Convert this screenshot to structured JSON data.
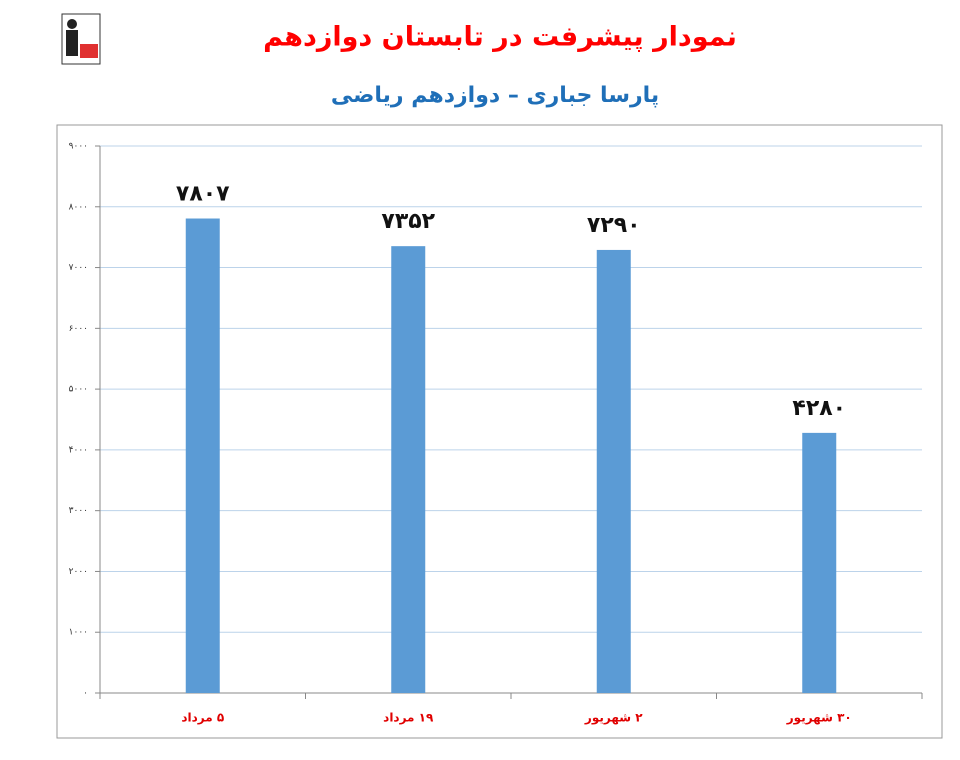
{
  "chart_data": {
    "type": "bar",
    "title": "نمودار پیشرفت در تابستان دوازدهم",
    "subtitle": "پارسا جباری – دوازدهم ریاضی",
    "categories": [
      "۵ مرداد",
      "۱۹ مرداد",
      "۲ شهریور",
      "۳۰ شهریور"
    ],
    "values": [
      7807,
      7352,
      7290,
      4280
    ],
    "value_labels": [
      "۷۸۰۷",
      "۷۳۵۲",
      "۷۲۹۰",
      "۴۲۸۰"
    ],
    "color": "#5b9bd5",
    "ylim": [
      0,
      9000
    ],
    "yticks": [
      {
        "value": 0,
        "label": "۰"
      },
      {
        "value": 1000,
        "label": "۱۰۰۰"
      },
      {
        "value": 2000,
        "label": "۲۰۰۰"
      },
      {
        "value": 3000,
        "label": "۳۰۰۰"
      },
      {
        "value": 4000,
        "label": "۴۰۰۰"
      },
      {
        "value": 5000,
        "label": "۵۰۰۰"
      },
      {
        "value": 6000,
        "label": "۶۰۰۰"
      },
      {
        "value": 7000,
        "label": "۷۰۰۰"
      },
      {
        "value": 8000,
        "label": "۸۰۰۰"
      },
      {
        "value": 9000,
        "label": "۹۰۰۰"
      }
    ],
    "grid": true
  }
}
